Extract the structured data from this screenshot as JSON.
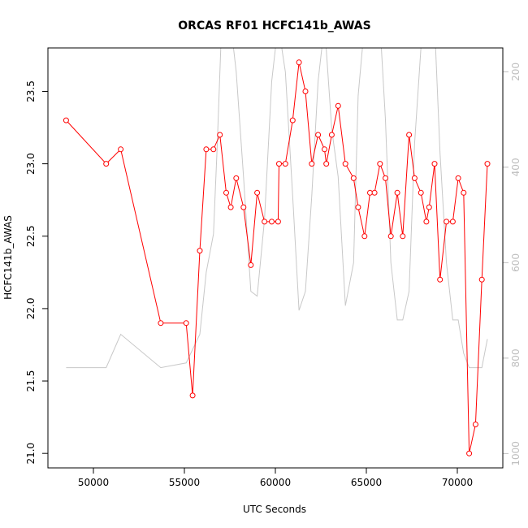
{
  "chart_data": {
    "type": "line",
    "title": "ORCAS RF01 HCFC141b_AWAS",
    "xlabel": "UTC Seconds",
    "ylabel": "HCFC141b_AWAS",
    "xlim": [
      47500,
      72500
    ],
    "ylim": [
      20.9,
      23.8
    ],
    "x_ticks": [
      50000,
      55000,
      60000,
      65000,
      70000
    ],
    "x_tick_labels": [
      "50000",
      "55000",
      "60000",
      "65000",
      "70000"
    ],
    "y_ticks": [
      21.0,
      21.5,
      22.0,
      22.5,
      23.0,
      23.5
    ],
    "y_tick_labels": [
      "21.0",
      "21.5",
      "22.0",
      "22.5",
      "23.0",
      "23.5"
    ],
    "y2_lim_top_to_bottom": [
      150,
      1030
    ],
    "y2_ticks": [
      200,
      400,
      600,
      800,
      1000
    ],
    "y2_tick_labels": [
      "200",
      "400",
      "600",
      "800",
      "1000"
    ],
    "grid": false,
    "series": [
      {
        "color": "#ff0000",
        "style": "line-with-open-circles",
        "axis": "left",
        "points": [
          [
            48500,
            23.3
          ],
          [
            50700,
            23.0
          ],
          [
            51500,
            23.1
          ],
          [
            53700,
            21.9
          ],
          [
            55100,
            21.9
          ],
          [
            55450,
            21.4
          ],
          [
            55850,
            22.4
          ],
          [
            56200,
            23.1
          ],
          [
            56600,
            23.1
          ],
          [
            56950,
            23.2
          ],
          [
            57300,
            22.8
          ],
          [
            57550,
            22.7
          ],
          [
            57850,
            22.9
          ],
          [
            58250,
            22.7
          ],
          [
            58650,
            22.3
          ],
          [
            59000,
            22.8
          ],
          [
            59400,
            22.6
          ],
          [
            59800,
            22.6
          ],
          [
            60150,
            22.6
          ],
          [
            60200,
            23.0
          ],
          [
            60550,
            23.0
          ],
          [
            60950,
            23.3
          ],
          [
            61300,
            23.7
          ],
          [
            61650,
            23.5
          ],
          [
            62000,
            23.0
          ],
          [
            62350,
            23.2
          ],
          [
            62700,
            23.1
          ],
          [
            62800,
            23.0
          ],
          [
            63100,
            23.2
          ],
          [
            63450,
            23.4
          ],
          [
            63850,
            23.0
          ],
          [
            64300,
            22.9
          ],
          [
            64550,
            22.7
          ],
          [
            64900,
            22.5
          ],
          [
            65200,
            22.8
          ],
          [
            65450,
            22.8
          ],
          [
            65750,
            23.0
          ],
          [
            66050,
            22.9
          ],
          [
            66350,
            22.5
          ],
          [
            66700,
            22.8
          ],
          [
            67000,
            22.5
          ],
          [
            67350,
            23.2
          ],
          [
            67650,
            22.9
          ],
          [
            68000,
            22.8
          ],
          [
            68300,
            22.6
          ],
          [
            68450,
            22.7
          ],
          [
            68750,
            23.0
          ],
          [
            69050,
            22.2
          ],
          [
            69400,
            22.6
          ],
          [
            69750,
            22.6
          ],
          [
            70050,
            22.9
          ],
          [
            70350,
            22.8
          ],
          [
            70650,
            21.0
          ],
          [
            71000,
            21.2
          ],
          [
            71350,
            22.2
          ],
          [
            71650,
            23.0
          ]
        ]
      },
      {
        "color": "#c8c8c8",
        "style": "line",
        "axis": "right",
        "points": [
          [
            48500,
            820
          ],
          [
            50700,
            820
          ],
          [
            51500,
            750
          ],
          [
            53700,
            820
          ],
          [
            55100,
            810
          ],
          [
            55850,
            750
          ],
          [
            56200,
            620
          ],
          [
            56600,
            540
          ],
          [
            56800,
            360
          ],
          [
            57000,
            150
          ],
          [
            57300,
            100
          ],
          [
            57550,
            100
          ],
          [
            57850,
            200
          ],
          [
            58250,
            420
          ],
          [
            58650,
            660
          ],
          [
            59000,
            670
          ],
          [
            59400,
            510
          ],
          [
            59800,
            220
          ],
          [
            60150,
            100
          ],
          [
            60550,
            200
          ],
          [
            60950,
            460
          ],
          [
            61300,
            700
          ],
          [
            61650,
            660
          ],
          [
            62000,
            460
          ],
          [
            62350,
            220
          ],
          [
            62700,
            100
          ],
          [
            63100,
            320
          ],
          [
            63450,
            420
          ],
          [
            63850,
            690
          ],
          [
            64300,
            600
          ],
          [
            64550,
            250
          ],
          [
            64900,
            100
          ],
          [
            65200,
            100
          ],
          [
            65450,
            100
          ],
          [
            65750,
            100
          ],
          [
            66050,
            300
          ],
          [
            66350,
            600
          ],
          [
            66700,
            720
          ],
          [
            67000,
            720
          ],
          [
            67350,
            660
          ],
          [
            67650,
            350
          ],
          [
            68000,
            150
          ],
          [
            68300,
            100
          ],
          [
            68750,
            100
          ],
          [
            69050,
            370
          ],
          [
            69400,
            600
          ],
          [
            69750,
            720
          ],
          [
            70050,
            720
          ],
          [
            70350,
            790
          ],
          [
            70650,
            820
          ],
          [
            71000,
            820
          ],
          [
            71350,
            820
          ],
          [
            71650,
            760
          ]
        ]
      }
    ]
  }
}
